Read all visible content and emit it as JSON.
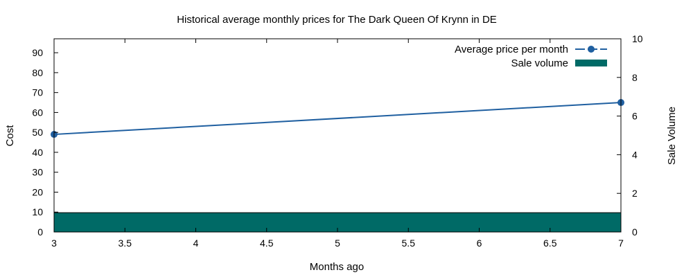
{
  "chart_data": {
    "type": "line",
    "title": "Historical average monthly prices for The Dark Queen Of Krynn in DE",
    "xlabel": "Months ago",
    "ylabel": "Cost",
    "y2label": "Sale Volume",
    "xlim": [
      3,
      7
    ],
    "ylim": [
      0,
      97
    ],
    "y2lim": [
      0,
      10
    ],
    "x_ticks": [
      "3",
      "3.5",
      "4",
      "4.5",
      "5",
      "5.5",
      "6",
      "6.5",
      "7"
    ],
    "y_ticks": [
      "0",
      "10",
      "20",
      "30",
      "40",
      "50",
      "60",
      "70",
      "80",
      "90"
    ],
    "y2_ticks": [
      "0",
      "2",
      "4",
      "6",
      "8",
      "10"
    ],
    "legend_position": "top-right",
    "grid": false,
    "series": [
      {
        "name": "Average price per month",
        "type": "line",
        "axis": "y",
        "color": "#1f5fa0",
        "x": [
          3,
          7
        ],
        "values": [
          49,
          65
        ]
      },
      {
        "name": "Sale volume",
        "type": "bar",
        "axis": "y2",
        "color": "#006a66",
        "x": [
          3,
          7
        ],
        "values": [
          1,
          1
        ]
      }
    ]
  }
}
